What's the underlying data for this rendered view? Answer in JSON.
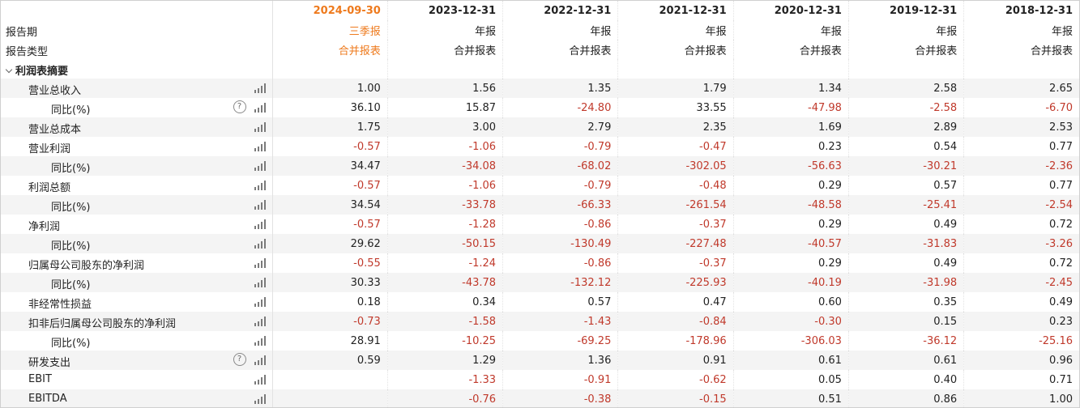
{
  "header": {
    "period_label": "报告期",
    "type_label": "报告类型",
    "periods": [
      {
        "date": "2024-09-30",
        "period_type": "三季报",
        "report_type": "合并报表",
        "current": true
      },
      {
        "date": "2023-12-31",
        "period_type": "年报",
        "report_type": "合并报表",
        "current": false
      },
      {
        "date": "2022-12-31",
        "period_type": "年报",
        "report_type": "合并报表",
        "current": false
      },
      {
        "date": "2021-12-31",
        "period_type": "年报",
        "report_type": "合并报表",
        "current": false
      },
      {
        "date": "2020-12-31",
        "period_type": "年报",
        "report_type": "合并报表",
        "current": false
      },
      {
        "date": "2019-12-31",
        "period_type": "年报",
        "report_type": "合并报表",
        "current": false
      },
      {
        "date": "2018-12-31",
        "period_type": "年报",
        "report_type": "合并报表",
        "current": false
      }
    ]
  },
  "section": {
    "title": "利润表摘要"
  },
  "rows": [
    {
      "label": "营业总收入",
      "level": 1,
      "help": false,
      "values": [
        "1.00",
        "1.56",
        "1.35",
        "1.79",
        "1.34",
        "2.58",
        "2.65"
      ]
    },
    {
      "label": "同比(%)",
      "level": 2,
      "help": true,
      "values": [
        "36.10",
        "15.87",
        "-24.80",
        "33.55",
        "-47.98",
        "-2.58",
        "-6.70"
      ]
    },
    {
      "label": "营业总成本",
      "level": 1,
      "help": false,
      "values": [
        "1.75",
        "3.00",
        "2.79",
        "2.35",
        "1.69",
        "2.89",
        "2.53"
      ]
    },
    {
      "label": "营业利润",
      "level": 1,
      "help": false,
      "values": [
        "-0.57",
        "-1.06",
        "-0.79",
        "-0.47",
        "0.23",
        "0.54",
        "0.77"
      ]
    },
    {
      "label": "同比(%)",
      "level": 2,
      "help": false,
      "values": [
        "34.47",
        "-34.08",
        "-68.02",
        "-302.05",
        "-56.63",
        "-30.21",
        "-2.36"
      ]
    },
    {
      "label": "利润总额",
      "level": 1,
      "help": false,
      "values": [
        "-0.57",
        "-1.06",
        "-0.79",
        "-0.48",
        "0.29",
        "0.57",
        "0.77"
      ]
    },
    {
      "label": "同比(%)",
      "level": 2,
      "help": false,
      "values": [
        "34.54",
        "-33.78",
        "-66.33",
        "-261.54",
        "-48.58",
        "-25.41",
        "-2.54"
      ]
    },
    {
      "label": "净利润",
      "level": 1,
      "help": false,
      "values": [
        "-0.57",
        "-1.28",
        "-0.86",
        "-0.37",
        "0.29",
        "0.49",
        "0.72"
      ]
    },
    {
      "label": "同比(%)",
      "level": 2,
      "help": false,
      "values": [
        "29.62",
        "-50.15",
        "-130.49",
        "-227.48",
        "-40.57",
        "-31.83",
        "-3.26"
      ]
    },
    {
      "label": "归属母公司股东的净利润",
      "level": 1,
      "help": false,
      "values": [
        "-0.55",
        "-1.24",
        "-0.86",
        "-0.37",
        "0.29",
        "0.49",
        "0.72"
      ]
    },
    {
      "label": "同比(%)",
      "level": 2,
      "help": false,
      "values": [
        "30.33",
        "-43.78",
        "-132.12",
        "-225.93",
        "-40.19",
        "-31.98",
        "-2.45"
      ]
    },
    {
      "label": "非经常性损益",
      "level": 1,
      "help": false,
      "values": [
        "0.18",
        "0.34",
        "0.57",
        "0.47",
        "0.60",
        "0.35",
        "0.49"
      ]
    },
    {
      "label": "扣非后归属母公司股东的净利润",
      "level": 1,
      "help": false,
      "values": [
        "-0.73",
        "-1.58",
        "-1.43",
        "-0.84",
        "-0.30",
        "0.15",
        "0.23"
      ]
    },
    {
      "label": "同比(%)",
      "level": 2,
      "help": false,
      "values": [
        "28.91",
        "-10.25",
        "-69.25",
        "-178.96",
        "-306.03",
        "-36.12",
        "-25.16"
      ]
    },
    {
      "label": "研发支出",
      "level": 1,
      "help": true,
      "values": [
        "0.59",
        "1.29",
        "1.36",
        "0.91",
        "0.61",
        "0.61",
        "0.96"
      ]
    },
    {
      "label": "EBIT",
      "level": 1,
      "help": false,
      "values": [
        "",
        "-1.33",
        "-0.91",
        "-0.62",
        "0.05",
        "0.40",
        "0.71"
      ]
    },
    {
      "label": "EBITDA",
      "level": 1,
      "help": false,
      "values": [
        "",
        "-0.76",
        "-0.38",
        "-0.15",
        "0.51",
        "0.86",
        "1.00"
      ]
    }
  ],
  "icons": {
    "help_glyph": "?",
    "chart": "bar-chart-icon",
    "help": "help-circle-icon",
    "collapse": "chevron-down-icon"
  },
  "colors": {
    "current_period": "#ee7a1d",
    "negative": "#c0392b"
  }
}
